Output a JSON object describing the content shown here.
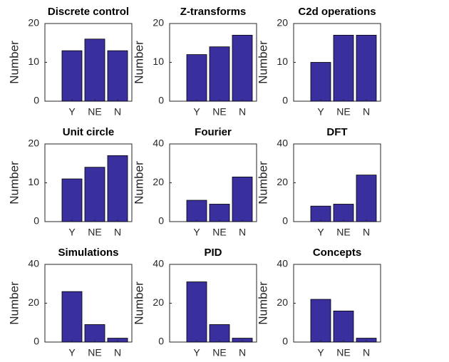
{
  "chart_data": [
    {
      "type": "bar",
      "title": "Discrete control",
      "ylabel": "Number",
      "categories": [
        "Y",
        "NE",
        "N"
      ],
      "values": [
        13,
        16,
        13
      ],
      "color": "#3a2f9e",
      "ylim": [
        0,
        20
      ],
      "yticks": [
        0,
        10,
        20
      ]
    },
    {
      "type": "bar",
      "title": "Z-transforms",
      "ylabel": "Number",
      "categories": [
        "Y",
        "NE",
        "N"
      ],
      "values": [
        12,
        14,
        17
      ],
      "color": "#3a2f9e",
      "ylim": [
        0,
        20
      ],
      "yticks": [
        0,
        10,
        20
      ]
    },
    {
      "type": "bar",
      "title": "C2d operations",
      "ylabel": "Number",
      "categories": [
        "Y",
        "NE",
        "N"
      ],
      "values": [
        10,
        17,
        17
      ],
      "color": "#3a2f9e",
      "ylim": [
        0,
        20
      ],
      "yticks": [
        0,
        10,
        20
      ]
    },
    {
      "type": "bar",
      "title": "Unit circle",
      "ylabel": "Number",
      "categories": [
        "Y",
        "NE",
        "N"
      ],
      "values": [
        11,
        14,
        17
      ],
      "color": "#3a2f9e",
      "ylim": [
        0,
        20
      ],
      "yticks": [
        0,
        10,
        20
      ]
    },
    {
      "type": "bar",
      "title": "Fourier",
      "ylabel": "Number",
      "categories": [
        "Y",
        "NE",
        "N"
      ],
      "values": [
        11,
        9,
        23
      ],
      "color": "#3a2f9e",
      "ylim": [
        0,
        40
      ],
      "yticks": [
        0,
        20,
        40
      ]
    },
    {
      "type": "bar",
      "title": "DFT",
      "ylabel": "Number",
      "categories": [
        "Y",
        "NE",
        "N"
      ],
      "values": [
        8,
        9,
        24
      ],
      "color": "#3a2f9e",
      "ylim": [
        0,
        40
      ],
      "yticks": [
        0,
        20,
        40
      ]
    },
    {
      "type": "bar",
      "title": "Simulations",
      "ylabel": "Number",
      "categories": [
        "Y",
        "NE",
        "N"
      ],
      "values": [
        26,
        9,
        2
      ],
      "color": "#3a2f9e",
      "ylim": [
        0,
        40
      ],
      "yticks": [
        0,
        20,
        40
      ]
    },
    {
      "type": "bar",
      "title": "PID",
      "ylabel": "Number",
      "categories": [
        "Y",
        "NE",
        "N"
      ],
      "values": [
        31,
        9,
        2
      ],
      "color": "#3a2f9e",
      "ylim": [
        0,
        40
      ],
      "yticks": [
        0,
        20,
        40
      ]
    },
    {
      "type": "bar",
      "title": "Concepts",
      "ylabel": "Number",
      "categories": [
        "Y",
        "NE",
        "N"
      ],
      "values": [
        22,
        16,
        2
      ],
      "color": "#3a2f9e",
      "ylim": [
        0,
        40
      ],
      "yticks": [
        0,
        20,
        40
      ]
    }
  ]
}
